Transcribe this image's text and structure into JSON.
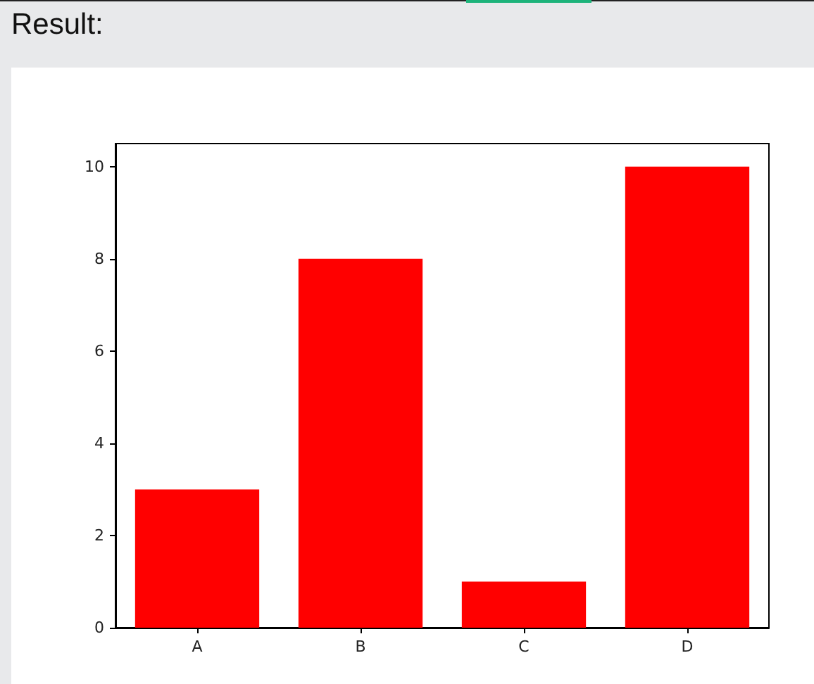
{
  "chart_data": {
    "type": "bar",
    "title": "Result:",
    "categories": [
      "A",
      "B",
      "C",
      "D"
    ],
    "values": [
      3,
      8,
      1,
      10
    ],
    "color": "#ff0000",
    "ylim": [
      0,
      10.5
    ],
    "yticks": [
      0,
      2,
      4,
      6,
      8,
      10
    ]
  }
}
